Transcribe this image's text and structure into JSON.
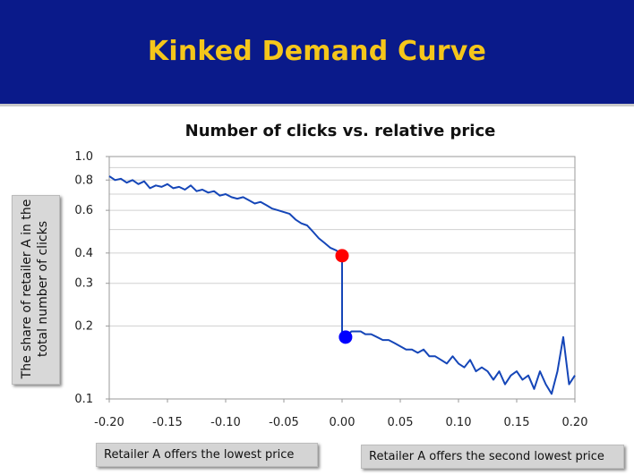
{
  "slide": {
    "title": "Kinked Demand Curve",
    "colors": {
      "banner_bg": "#0a1a8a",
      "title_color": "#f5c61a",
      "line": "#1546b8",
      "kink_top": "#ff0000",
      "kink_bottom": "#0000ff"
    }
  },
  "notes": {
    "left": "Retailer A offers the lowest price",
    "right": "Retailer A offers the second lowest price"
  },
  "chart_data": {
    "type": "line",
    "title": "Number of clicks vs. relative price",
    "xlabel": "",
    "ylabel": "The share of retailer A in the total number of clicks",
    "xlim": [
      -0.2,
      0.2
    ],
    "ylim": [
      0.1,
      1.0
    ],
    "yscale": "log",
    "grid": "horizontal",
    "x_ticks": [
      "-0.20",
      "-0.15",
      "-0.10",
      "-0.05",
      "0.00",
      "0.05",
      "0.10",
      "0.15",
      "0.20"
    ],
    "y_ticks": [
      "0.1",
      "0.2",
      "0.3",
      "0.4",
      "0.6",
      "0.8",
      "1.0"
    ],
    "series": [
      {
        "x": [
          -0.2,
          -0.195,
          -0.19,
          -0.185,
          -0.18,
          -0.175,
          -0.17,
          -0.165,
          -0.16,
          -0.155,
          -0.15,
          -0.145,
          -0.14,
          -0.135,
          -0.13,
          -0.125,
          -0.12,
          -0.115,
          -0.11,
          -0.105,
          -0.1,
          -0.095,
          -0.09,
          -0.085,
          -0.08,
          -0.075,
          -0.07,
          -0.065,
          -0.06,
          -0.055,
          -0.05,
          -0.045,
          -0.04,
          -0.035,
          -0.03,
          -0.025,
          -0.02,
          -0.015,
          -0.01,
          -0.005,
          0.0,
          0.0,
          0.003,
          0.008,
          0.012,
          0.016,
          0.02,
          0.025,
          0.03,
          0.035,
          0.04,
          0.045,
          0.05,
          0.055,
          0.06,
          0.065,
          0.07,
          0.075,
          0.08,
          0.085,
          0.09,
          0.095,
          0.1,
          0.105,
          0.11,
          0.115,
          0.12,
          0.125,
          0.13,
          0.135,
          0.14,
          0.145,
          0.15,
          0.155,
          0.16,
          0.165,
          0.17,
          0.175,
          0.18,
          0.185,
          0.19,
          0.195,
          0.2
        ],
        "y": [
          0.83,
          0.8,
          0.81,
          0.78,
          0.8,
          0.77,
          0.79,
          0.74,
          0.76,
          0.75,
          0.77,
          0.74,
          0.75,
          0.73,
          0.76,
          0.72,
          0.73,
          0.71,
          0.72,
          0.69,
          0.7,
          0.68,
          0.67,
          0.68,
          0.66,
          0.64,
          0.65,
          0.63,
          0.61,
          0.6,
          0.59,
          0.58,
          0.55,
          0.53,
          0.52,
          0.49,
          0.46,
          0.44,
          0.42,
          0.41,
          0.39,
          0.18,
          0.18,
          0.19,
          0.19,
          0.19,
          0.185,
          0.185,
          0.18,
          0.175,
          0.175,
          0.17,
          0.165,
          0.16,
          0.16,
          0.155,
          0.16,
          0.15,
          0.15,
          0.145,
          0.14,
          0.15,
          0.14,
          0.135,
          0.145,
          0.13,
          0.135,
          0.13,
          0.12,
          0.13,
          0.115,
          0.125,
          0.13,
          0.12,
          0.125,
          0.11,
          0.13,
          0.115,
          0.105,
          0.13,
          0.18,
          0.115,
          0.125
        ]
      }
    ],
    "markers": [
      {
        "x": 0.0,
        "y": 0.39,
        "color": "#ff0000"
      },
      {
        "x": 0.003,
        "y": 0.18,
        "color": "#0000ff"
      }
    ]
  }
}
